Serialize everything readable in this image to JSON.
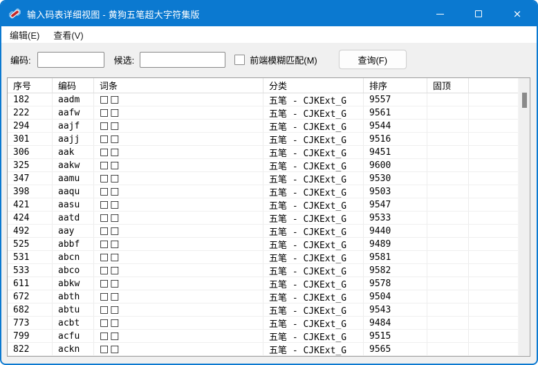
{
  "window": {
    "title": "输入码表详细视图 - 黄狗五笔超大字符集版",
    "close_glyph": "×",
    "accent_color": "#0b79d0"
  },
  "menu": {
    "items": [
      {
        "label": "编辑(E)"
      },
      {
        "label": "查看(V)"
      }
    ]
  },
  "toolbar": {
    "code_label": "编码:",
    "code_value": "",
    "candidate_label": "候选:",
    "candidate_value": "",
    "fuzzy_checkbox_label": "前端模糊匹配(M)",
    "fuzzy_checked": false,
    "query_button_label": "查询(F)"
  },
  "table": {
    "columns": [
      "序号",
      "编码",
      "词条",
      "分类",
      "排序",
      "固顶"
    ],
    "rows": [
      [
        "182",
        "aadm",
        "□□",
        "五笔 - CJKExt_G",
        "9557",
        ""
      ],
      [
        "222",
        "aafw",
        "□□",
        "五笔 - CJKExt_G",
        "9561",
        ""
      ],
      [
        "294",
        "aajf",
        "□□",
        "五笔 - CJKExt_G",
        "9544",
        ""
      ],
      [
        "301",
        "aajj",
        "□□",
        "五笔 - CJKExt_G",
        "9516",
        ""
      ],
      [
        "306",
        "aak",
        "□□",
        "五笔 - CJKExt_G",
        "9451",
        ""
      ],
      [
        "325",
        "aakw",
        "□□",
        "五笔 - CJKExt_G",
        "9600",
        ""
      ],
      [
        "347",
        "aamu",
        "□□",
        "五笔 - CJKExt_G",
        "9530",
        ""
      ],
      [
        "398",
        "aaqu",
        "□□",
        "五笔 - CJKExt_G",
        "9503",
        ""
      ],
      [
        "421",
        "aasu",
        "□□",
        "五笔 - CJKExt_G",
        "9547",
        ""
      ],
      [
        "424",
        "aatd",
        "□□",
        "五笔 - CJKExt_G",
        "9533",
        ""
      ],
      [
        "492",
        "aay",
        "□□",
        "五笔 - CJKExt_G",
        "9440",
        ""
      ],
      [
        "525",
        "abbf",
        "□□",
        "五笔 - CJKExt_G",
        "9489",
        ""
      ],
      [
        "531",
        "abcn",
        "□□",
        "五笔 - CJKExt_G",
        "9581",
        ""
      ],
      [
        "533",
        "abco",
        "□□",
        "五笔 - CJKExt_G",
        "9582",
        ""
      ],
      [
        "611",
        "abkw",
        "□□",
        "五笔 - CJKExt_G",
        "9578",
        ""
      ],
      [
        "672",
        "abth",
        "□□",
        "五笔 - CJKExt_G",
        "9504",
        ""
      ],
      [
        "682",
        "abtu",
        "□□",
        "五笔 - CJKExt_G",
        "9543",
        ""
      ],
      [
        "773",
        "acbt",
        "□□",
        "五笔 - CJKExt_G",
        "9484",
        ""
      ],
      [
        "799",
        "acfu",
        "□□",
        "五笔 - CJKExt_G",
        "9515",
        ""
      ],
      [
        "822",
        "ackn",
        "□□",
        "五笔 - CJKExt_G",
        "9565",
        ""
      ]
    ]
  }
}
